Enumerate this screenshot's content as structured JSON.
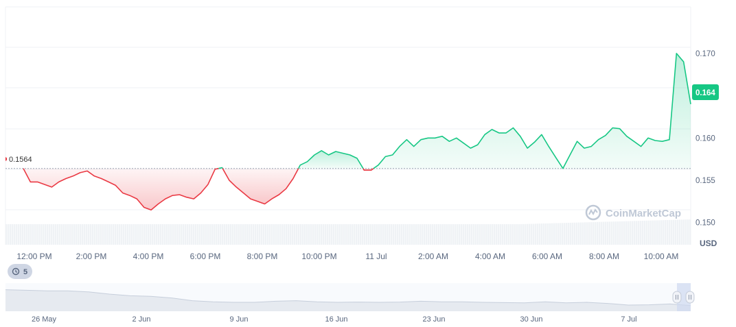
{
  "watermark": "CoinMarketCap",
  "history_badge": "5",
  "colors": {
    "up": "#16c784",
    "down": "#ea3943",
    "grid": "#eff2f5",
    "volume": "#eff2f5"
  },
  "chart_data": {
    "type": "area",
    "currency": "USD",
    "reference_value": 0.1564,
    "reference_label": "0.1564",
    "current_value": 0.164,
    "current_label": "0.164",
    "ylim": [
      0.1473,
      0.1755
    ],
    "y_ticks": [
      "0.150",
      "0.155",
      "0.160",
      "0.170"
    ],
    "x_ticks": [
      "12:00 PM",
      "2:00 PM",
      "4:00 PM",
      "6:00 PM",
      "8:00 PM",
      "10:00 PM",
      "11 Jul",
      "2:00 AM",
      "4:00 AM",
      "6:00 AM",
      "8:00 AM",
      "10:00 AM"
    ],
    "series": [
      {
        "values": [
          0.1564,
          0.1548,
          0.1548,
          0.1545,
          0.1542,
          0.1548,
          0.1552,
          0.1555,
          0.1559,
          0.1561,
          0.1555,
          0.1552,
          0.1548,
          0.1544,
          0.1535,
          0.1532,
          0.1528,
          0.1518,
          0.1515,
          0.1522,
          0.1528,
          0.1532,
          0.1533,
          0.153,
          0.1528,
          0.1535,
          0.1545,
          0.1563,
          0.1565,
          0.155,
          0.1542,
          0.1535,
          0.1528,
          0.1525,
          0.1522,
          0.1528,
          0.1533,
          0.154,
          0.1552,
          0.1568,
          0.1572,
          0.158,
          0.1585,
          0.158,
          0.1584,
          0.1582,
          0.158,
          0.1576,
          0.1562,
          0.1562,
          0.1568,
          0.1578,
          0.158,
          0.159,
          0.1598,
          0.159,
          0.1598,
          0.16,
          0.16,
          0.1602,
          0.1596,
          0.16,
          0.1594,
          0.1588,
          0.1592,
          0.1604,
          0.161,
          0.1606,
          0.1606,
          0.1612,
          0.1602,
          0.1588,
          0.1595,
          0.1604,
          0.159,
          0.1577,
          0.1564,
          0.158,
          0.1596,
          0.1588,
          0.159,
          0.1598,
          0.1603,
          0.1612,
          0.1611,
          0.1602,
          0.1596,
          0.159,
          0.16,
          0.1597,
          0.1596,
          0.1598,
          0.17,
          0.169,
          0.164
        ]
      }
    ]
  },
  "navigator": {
    "dates": [
      "26 May",
      "2 Jun",
      "9 Jun",
      "16 Jun",
      "23 Jun",
      "30 Jun",
      "7 Jul"
    ],
    "values": [
      0.216,
      0.214,
      0.212,
      0.212,
      0.208,
      0.2,
      0.194,
      0.192,
      0.186,
      0.176,
      0.172,
      0.17,
      0.17,
      0.174,
      0.176,
      0.172,
      0.17,
      0.171,
      0.17,
      0.171,
      0.174,
      0.172,
      0.172,
      0.17,
      0.169,
      0.168,
      0.172,
      0.168,
      0.17,
      0.166,
      0.16,
      0.161,
      0.164,
      0.158
    ]
  }
}
